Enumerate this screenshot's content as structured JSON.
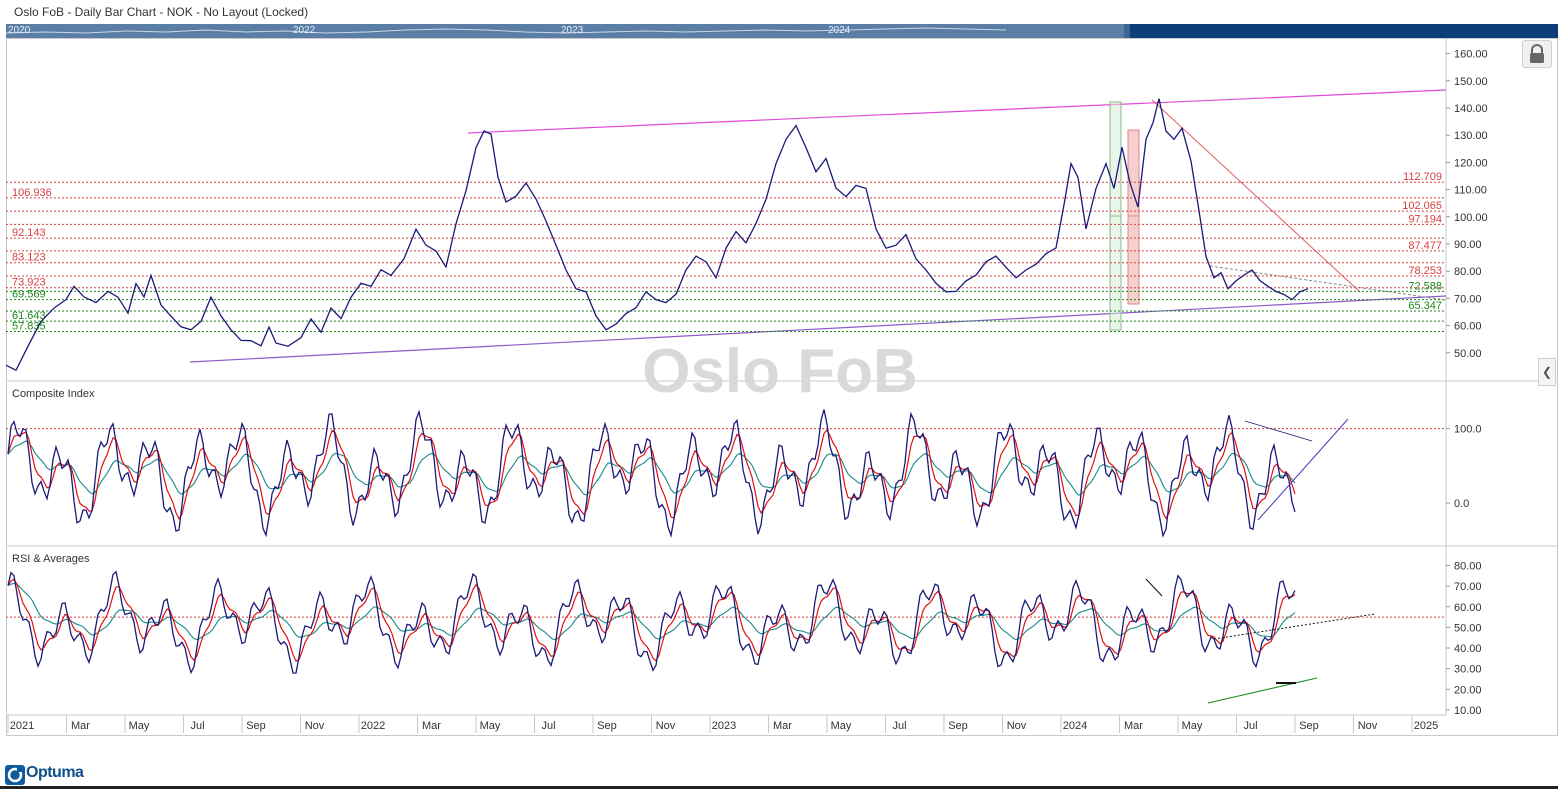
{
  "window": {
    "title": "Oslo FoB - Daily Bar Chart - NOK - No Layout (Locked)"
  },
  "navigator": {
    "years": [
      "2020",
      "2022",
      "2023",
      "2024"
    ]
  },
  "watermark": "Oslo FoB",
  "footer": {
    "logo_text": "Optuma"
  },
  "colors": {
    "price_line": "#1a1a7a",
    "resistance": "#e24bd8",
    "support": "#8a5cc8",
    "red_level": "#d84040",
    "green_level": "#1e8a1e",
    "ema_red": "#e01010",
    "ema_teal": "#1a8a8a"
  },
  "chart_data": [
    {
      "type": "line",
      "panel": "price",
      "x_ticks": [
        "2021",
        "Mar",
        "May",
        "Jul",
        "Sep",
        "Nov",
        "2022",
        "Mar",
        "May",
        "Jul",
        "Sep",
        "Nov",
        "2023",
        "Mar",
        "May",
        "Jul",
        "Sep",
        "Nov",
        "2024",
        "Mar",
        "May",
        "Jul",
        "Sep",
        "Nov",
        "2025"
      ],
      "y_ticks": [
        "160.00",
        "150.00",
        "140.00",
        "130.00",
        "120.00",
        "110.00",
        "100.00",
        "90.00",
        "80.00",
        "70.00",
        "60.00",
        "50.00"
      ],
      "ylim": [
        40,
        165
      ],
      "series": [
        {
          "points": [
            [
              0,
              45
            ],
            [
              10,
              44
            ],
            [
              22,
              52
            ],
            [
              35,
              62
            ],
            [
              48,
              66
            ],
            [
              60,
              70
            ],
            [
              68,
              74
            ],
            [
              78,
              71
            ],
            [
              90,
              68
            ],
            [
              102,
              73
            ],
            [
              112,
              70
            ],
            [
              122,
              65
            ],
            [
              130,
              75
            ],
            [
              138,
              71
            ],
            [
              145,
              78
            ],
            [
              155,
              68
            ],
            [
              165,
              63
            ],
            [
              175,
              60
            ],
            [
              185,
              58
            ],
            [
              195,
              62
            ],
            [
              205,
              70
            ],
            [
              215,
              64
            ],
            [
              225,
              58
            ],
            [
              235,
              55
            ],
            [
              245,
              54
            ],
            [
              255,
              53
            ],
            [
              263,
              59
            ],
            [
              270,
              54
            ],
            [
              282,
              52
            ],
            [
              295,
              56
            ],
            [
              305,
              62
            ],
            [
              315,
              58
            ],
            [
              325,
              66
            ],
            [
              335,
              63
            ],
            [
              345,
              70
            ],
            [
              355,
              76
            ],
            [
              365,
              74
            ],
            [
              375,
              81
            ],
            [
              385,
              78
            ],
            [
              398,
              85
            ],
            [
              410,
              95
            ],
            [
              420,
              90
            ],
            [
              430,
              87
            ],
            [
              440,
              82
            ],
            [
              450,
              97
            ],
            [
              460,
              110
            ],
            [
              470,
              125
            ],
            [
              478,
              132
            ],
            [
              485,
              130
            ],
            [
              492,
              115
            ],
            [
              500,
              105
            ],
            [
              510,
              108
            ],
            [
              520,
              112
            ],
            [
              530,
              107
            ],
            [
              540,
              98
            ],
            [
              550,
              90
            ],
            [
              560,
              80
            ],
            [
              570,
              74
            ],
            [
              580,
              72
            ],
            [
              590,
              64
            ],
            [
              600,
              58
            ],
            [
              610,
              61
            ],
            [
              620,
              64
            ],
            [
              630,
              67
            ],
            [
              640,
              72
            ],
            [
              650,
              70
            ],
            [
              660,
              68
            ],
            [
              670,
              72
            ],
            [
              680,
              80
            ],
            [
              690,
              86
            ],
            [
              700,
              83
            ],
            [
              710,
              78
            ],
            [
              720,
              88
            ],
            [
              730,
              95
            ],
            [
              740,
              90
            ],
            [
              750,
              98
            ],
            [
              760,
              106
            ],
            [
              770,
              120
            ],
            [
              780,
              128
            ],
            [
              790,
              134
            ],
            [
              800,
              125
            ],
            [
              810,
              117
            ],
            [
              820,
              121
            ],
            [
              830,
              111
            ],
            [
              840,
              107
            ],
            [
              850,
              112
            ],
            [
              860,
              110
            ],
            [
              870,
              96
            ],
            [
              880,
              88
            ],
            [
              890,
              90
            ],
            [
              900,
              93
            ],
            [
              910,
              85
            ],
            [
              920,
              80
            ],
            [
              930,
              76
            ],
            [
              940,
              72
            ],
            [
              950,
              73
            ],
            [
              960,
              76
            ],
            [
              970,
              79
            ],
            [
              980,
              83
            ],
            [
              990,
              86
            ],
            [
              1000,
              81
            ],
            [
              1010,
              78
            ],
            [
              1020,
              80
            ],
            [
              1030,
              83
            ],
            [
              1040,
              86
            ],
            [
              1050,
              89
            ],
            [
              1058,
              104
            ],
            [
              1065,
              120
            ],
            [
              1072,
              114
            ],
            [
              1080,
              96
            ],
            [
              1090,
              110
            ],
            [
              1100,
              120
            ],
            [
              1108,
              110
            ],
            [
              1116,
              126
            ],
            [
              1124,
              112
            ],
            [
              1132,
              104
            ],
            [
              1140,
              128
            ],
            [
              1147,
              135
            ],
            [
              1153,
              143
            ],
            [
              1160,
              132
            ],
            [
              1168,
              128
            ],
            [
              1176,
              133
            ],
            [
              1185,
              120
            ],
            [
              1192,
              105
            ],
            [
              1200,
              85
            ],
            [
              1208,
              78
            ],
            [
              1215,
              79
            ],
            [
              1222,
              74
            ],
            [
              1230,
              76
            ],
            [
              1238,
              79
            ],
            [
              1246,
              80
            ],
            [
              1254,
              77
            ],
            [
              1262,
              74
            ],
            [
              1270,
              73
            ],
            [
              1278,
              71
            ],
            [
              1286,
              70
            ],
            [
              1294,
              72
            ],
            [
              1302,
              74
            ]
          ]
        }
      ],
      "horizontal_levels": [
        {
          "label": "112.709",
          "value": 112.709,
          "color": "red"
        },
        {
          "label": "106.936",
          "value": 106.936,
          "color": "red"
        },
        {
          "label": "102.065",
          "value": 102.065,
          "color": "red"
        },
        {
          "label": "97.194",
          "value": 97.194,
          "color": "red"
        },
        {
          "label": "92.143",
          "value": 92.143,
          "color": "red"
        },
        {
          "label": "87.477",
          "value": 87.477,
          "color": "red"
        },
        {
          "label": "83.123",
          "value": 83.123,
          "color": "red"
        },
        {
          "label": "78.253",
          "value": 78.253,
          "color": "red"
        },
        {
          "label": "73.923",
          "value": 73.923,
          "color": "red"
        },
        {
          "label": "72.588",
          "value": 72.588,
          "color": "green"
        },
        {
          "label": "69.569",
          "value": 69.569,
          "color": "green"
        },
        {
          "label": "65.347",
          "value": 65.347,
          "color": "green"
        },
        {
          "label": "61.643",
          "value": 61.643,
          "color": "green"
        },
        {
          "label": "57.835",
          "value": 57.835,
          "color": "green"
        }
      ]
    },
    {
      "type": "line",
      "panel": "composite",
      "title": "Composite Index",
      "y_ticks": [
        "100.0",
        "0.0"
      ],
      "ylim": [
        -55,
        160
      ],
      "reference_line": 100
    },
    {
      "type": "line",
      "panel": "rsi",
      "title": "RSI & Averages",
      "y_ticks": [
        "80.00",
        "70.00",
        "60.00",
        "50.00",
        "40.00",
        "30.00",
        "20.00",
        "10.00"
      ],
      "ylim": [
        8,
        88
      ],
      "reference_line": 55
    }
  ]
}
